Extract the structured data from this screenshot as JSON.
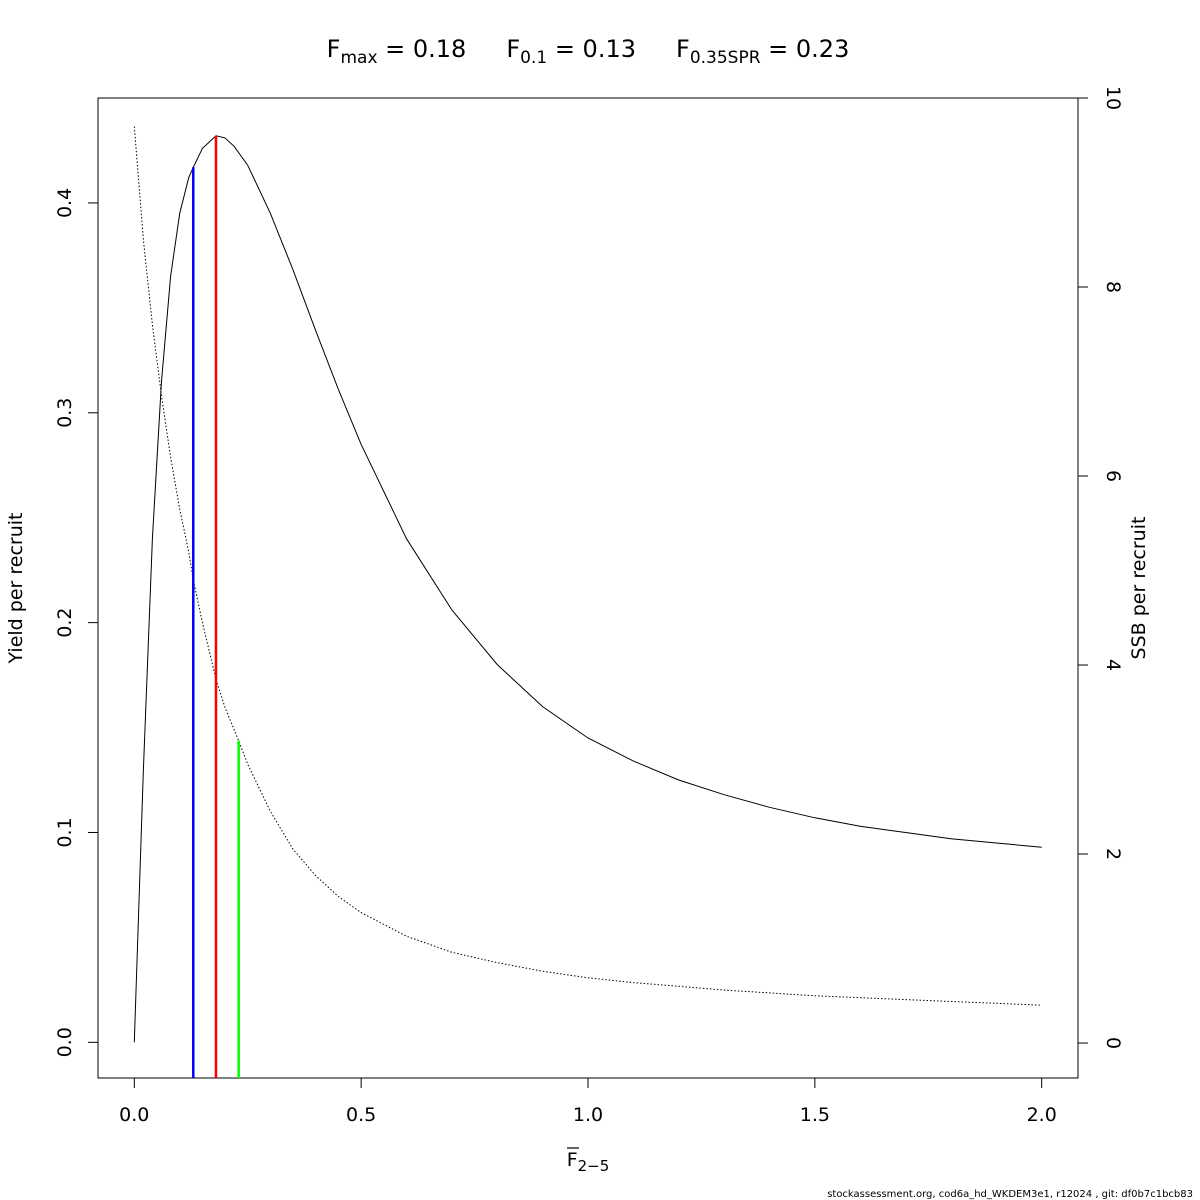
{
  "chart_data": {
    "type": "line",
    "title_parts": [
      {
        "symbol": "F",
        "subscript": "max",
        "equals": "=",
        "value": "0.18"
      },
      {
        "symbol": "F",
        "subscript": "0.1",
        "equals": "=",
        "value": "0.13"
      },
      {
        "symbol": "F",
        "subscript": "0.35SPR",
        "equals": "=",
        "value": "0.23"
      }
    ],
    "xlabel": {
      "symbol": "F",
      "subscript": "2−5"
    },
    "ylabel": "Yield per recruit",
    "y2label": "SSB per recruit",
    "xlim": [
      -0.08,
      2.08
    ],
    "ylim": [
      -0.017,
      0.45
    ],
    "y2lim": [
      -0.37,
      10.0
    ],
    "xticks": [
      "0.0",
      "0.5",
      "1.0",
      "1.5",
      "2.0"
    ],
    "yticks": [
      "0.0",
      "0.1",
      "0.2",
      "0.3",
      "0.4"
    ],
    "y2ticks": [
      "0",
      "2",
      "4",
      "6",
      "8",
      "10"
    ],
    "grid": false,
    "series": [
      {
        "axis": "left",
        "style": "solid",
        "color": "#000000",
        "x": [
          0,
          0.02,
          0.04,
          0.06,
          0.08,
          0.1,
          0.12,
          0.13,
          0.15,
          0.18,
          0.2,
          0.22,
          0.25,
          0.3,
          0.35,
          0.4,
          0.45,
          0.5,
          0.6,
          0.7,
          0.8,
          0.9,
          1.0,
          1.1,
          1.2,
          1.3,
          1.4,
          1.5,
          1.6,
          1.7,
          1.8,
          1.9,
          2.0
        ],
        "y": [
          0,
          0.13,
          0.24,
          0.315,
          0.365,
          0.395,
          0.412,
          0.417,
          0.426,
          0.432,
          0.431,
          0.427,
          0.418,
          0.395,
          0.368,
          0.339,
          0.311,
          0.285,
          0.24,
          0.206,
          0.18,
          0.16,
          0.145,
          0.134,
          0.125,
          0.118,
          0.112,
          0.107,
          0.103,
          0.1,
          0.097,
          0.095,
          0.093
        ]
      },
      {
        "axis": "right",
        "style": "dotted",
        "color": "#000000",
        "x": [
          0,
          0.02,
          0.04,
          0.06,
          0.08,
          0.1,
          0.12,
          0.13,
          0.15,
          0.18,
          0.2,
          0.23,
          0.25,
          0.3,
          0.35,
          0.4,
          0.45,
          0.5,
          0.6,
          0.7,
          0.8,
          0.9,
          1.0,
          1.1,
          1.2,
          1.3,
          1.4,
          1.5,
          1.6,
          1.7,
          1.8,
          1.9,
          2.0
        ],
        "y": [
          9.7,
          8.5,
          7.6,
          6.85,
          6.2,
          5.65,
          5.2,
          4.9,
          4.45,
          3.85,
          3.55,
          3.2,
          2.95,
          2.45,
          2.05,
          1.77,
          1.55,
          1.38,
          1.13,
          0.96,
          0.85,
          0.76,
          0.69,
          0.64,
          0.6,
          0.56,
          0.53,
          0.5,
          0.48,
          0.46,
          0.44,
          0.42,
          0.4
        ]
      }
    ],
    "reference_lines": [
      {
        "x": 0.13,
        "y_top": 0.417,
        "axis": "left",
        "color": "#0000ff"
      },
      {
        "x": 0.18,
        "y_top": 0.432,
        "axis": "left",
        "color": "#ff0000"
      },
      {
        "x": 0.23,
        "y_top": 3.2,
        "axis": "right",
        "color": "#00ff00"
      }
    ]
  },
  "footer": "stockassessment.org, cod6a_hd_WKDEM3e1, r12024 , git: df0b7c1bcb83"
}
